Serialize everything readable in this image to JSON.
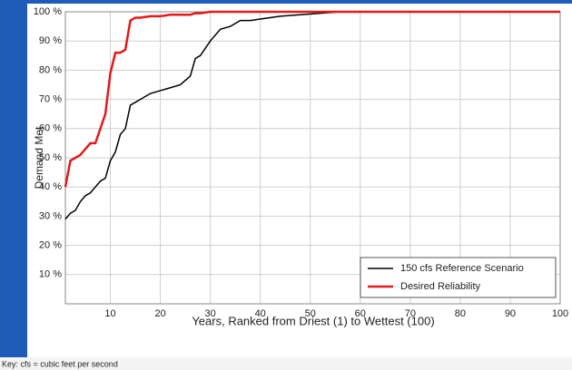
{
  "chart_data": {
    "type": "line",
    "xlabel": "Years, Ranked from Driest (1) to Wettest (100)",
    "ylabel": "Demand Met",
    "note": "Key: cfs = cubic feet per second",
    "x": [
      1,
      2,
      3,
      4,
      5,
      6,
      7,
      8,
      9,
      10,
      11,
      12,
      13,
      14,
      15,
      16,
      18,
      20,
      22,
      24,
      26,
      27,
      28,
      30,
      32,
      34,
      36,
      38,
      40,
      44,
      48,
      52,
      56,
      60,
      70,
      80,
      90,
      100
    ],
    "series": [
      {
        "name": "150 cfs Reference Scenario",
        "color": "#000000",
        "values": [
          29,
          31,
          32,
          35,
          37,
          38,
          40,
          42,
          43,
          49,
          52,
          58,
          60,
          68,
          69,
          70,
          72,
          73,
          74,
          75,
          78,
          84,
          85,
          90,
          94,
          95,
          97,
          97,
          97.5,
          98.5,
          99,
          99.5,
          100,
          100,
          100,
          100,
          100,
          100
        ]
      },
      {
        "name": "Desired Reliability",
        "color": "#e41a1a",
        "values": [
          40,
          49,
          50,
          51,
          53,
          55,
          55,
          60,
          65,
          79,
          86,
          86,
          87,
          97,
          98,
          98,
          98.5,
          98.5,
          99,
          99,
          99,
          99.5,
          99.5,
          100,
          100,
          100,
          100,
          100,
          100,
          100,
          100,
          100,
          100,
          100,
          100,
          100,
          100,
          100
        ]
      }
    ],
    "xlim": [
      1,
      100
    ],
    "xticks": [
      10,
      20,
      30,
      40,
      50,
      60,
      70,
      80,
      90,
      100
    ],
    "ylim": [
      0,
      100
    ],
    "yticks": [
      {
        "value": 10,
        "label": "10 %"
      },
      {
        "value": 20,
        "label": "20 %"
      },
      {
        "value": 30,
        "label": "30 %"
      },
      {
        "value": 40,
        "label": "40 %"
      },
      {
        "value": 50,
        "label": "50 %"
      },
      {
        "value": 60,
        "label": "60 %"
      },
      {
        "value": 70,
        "label": "70 %"
      },
      {
        "value": 80,
        "label": "80 %"
      },
      {
        "value": 90,
        "label": "90 %"
      },
      {
        "value": 100,
        "label": "100 %"
      }
    ],
    "grid": true,
    "legend": "lower right"
  }
}
